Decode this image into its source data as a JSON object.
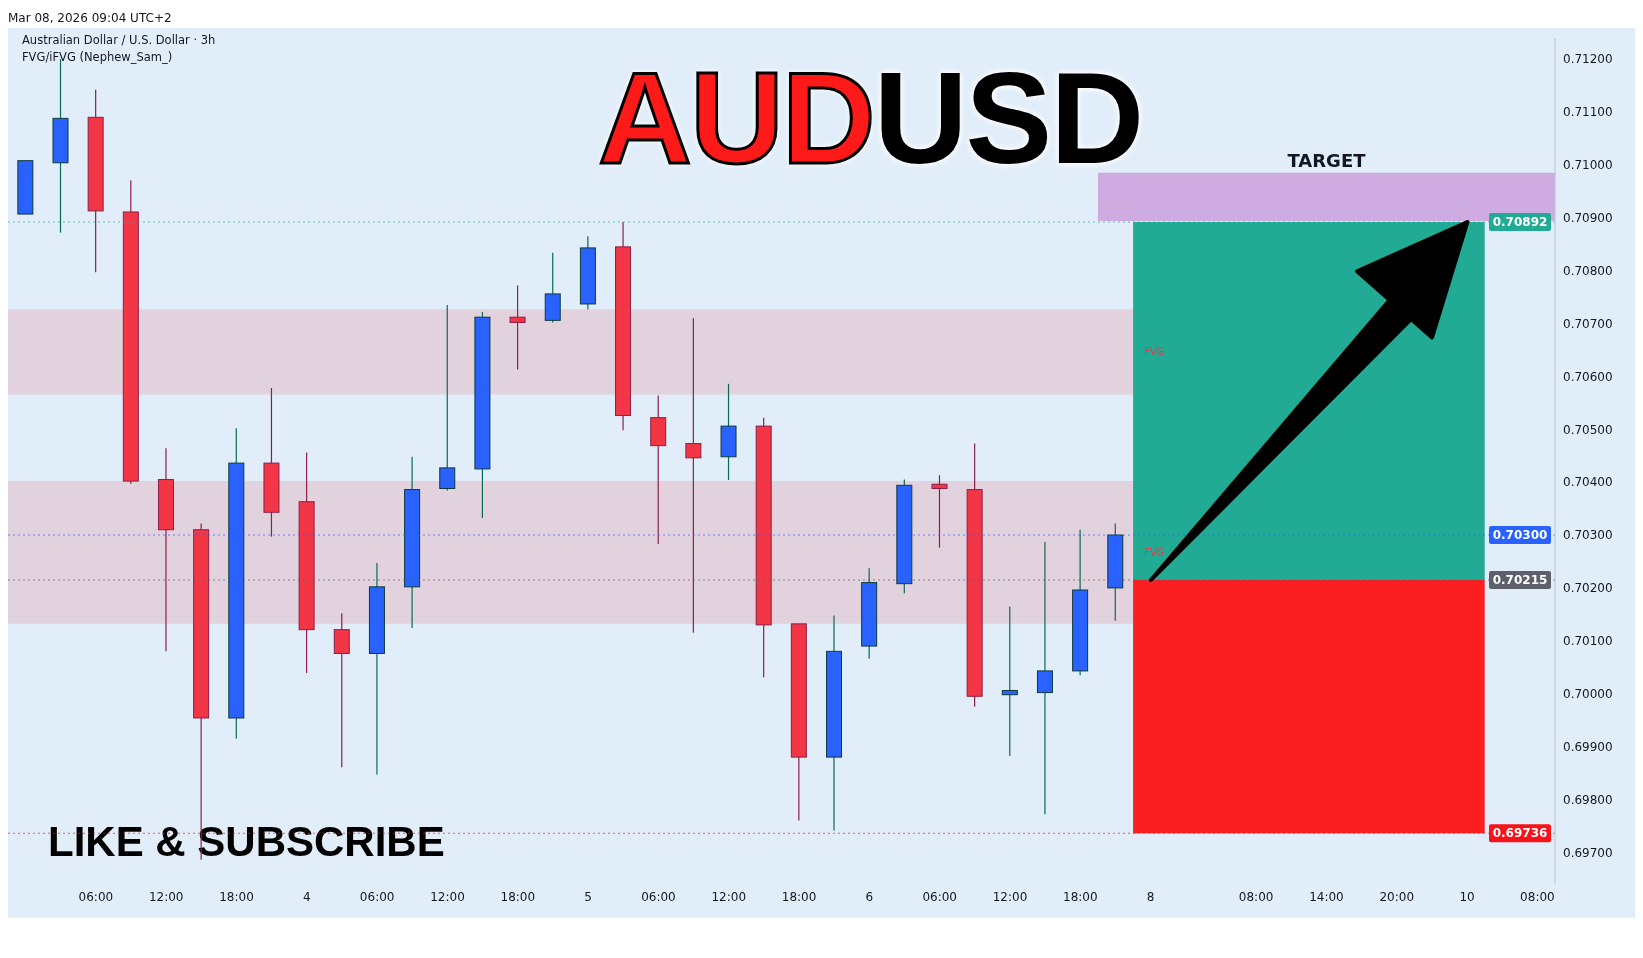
{
  "chart_data": {
    "type": "candlestick",
    "title": "AUDUSD",
    "subtitle": "Australian Dollar / U.S. Dollar · 3h",
    "annotations": [
      "Mar 08, 2026 09:04 UTC+2",
      "FVG/iFVG (Nephew_Sam_)",
      "LIKE & SUBSCRIBE"
    ],
    "categories": [
      null,
      null,
      "06:00",
      null,
      "12:00",
      null,
      "18:00",
      null,
      "4",
      null,
      "06:00",
      null,
      "12:00",
      null,
      "18:00",
      null,
      "5",
      null,
      "06:00",
      null,
      "12:00",
      null,
      "18:00",
      null,
      "6",
      null,
      "06:00",
      null,
      "12:00",
      null,
      "18:00",
      null,
      "8",
      null,
      null,
      "08:00",
      null,
      "14:00",
      null,
      "20:00",
      null,
      "10",
      null,
      "08:00"
    ],
    "ohlc": [
      [
        0.70907,
        0.71008,
        0.70907,
        0.71008
      ],
      [
        0.71004,
        0.712,
        0.70872,
        0.71088
      ],
      [
        0.7109,
        0.71142,
        0.70797,
        0.70913
      ],
      [
        0.70911,
        0.70971,
        0.70397,
        0.70402
      ],
      [
        0.70405,
        0.70464,
        0.7008,
        0.7031
      ],
      [
        0.7031,
        0.70322,
        0.69686,
        0.69954
      ],
      [
        0.69954,
        0.70502,
        0.69915,
        0.70436
      ],
      [
        0.70436,
        0.70578,
        0.70297,
        0.70343
      ],
      [
        0.70363,
        0.70456,
        0.70039,
        0.70121
      ],
      [
        0.70121,
        0.70152,
        0.69861,
        0.70076
      ],
      [
        0.70076,
        0.70247,
        0.69847,
        0.70202
      ],
      [
        0.70202,
        0.70448,
        0.70124,
        0.70386
      ],
      [
        0.70388,
        0.70735,
        0.70384,
        0.70427
      ],
      [
        0.70425,
        0.70722,
        0.70332,
        0.70712
      ],
      [
        0.70712,
        0.70772,
        0.70613,
        0.70702
      ],
      [
        0.70706,
        0.70834,
        0.70702,
        0.70756
      ],
      [
        0.70737,
        0.70865,
        0.70727,
        0.70843
      ],
      [
        0.70845,
        0.70892,
        0.70498,
        0.70526
      ],
      [
        0.70522,
        0.70564,
        0.70283,
        0.70469
      ],
      [
        0.70473,
        0.7071,
        0.70115,
        0.70446
      ],
      [
        0.70448,
        0.70586,
        0.70404,
        0.70506
      ],
      [
        0.70506,
        0.70522,
        0.70031,
        0.7013
      ],
      [
        0.70132,
        0.70132,
        0.6976,
        0.6988
      ],
      [
        0.6988,
        0.70148,
        0.69741,
        0.7008
      ],
      [
        0.7009,
        0.70237,
        0.70066,
        0.7021
      ],
      [
        0.70208,
        0.70405,
        0.7019,
        0.70394
      ],
      [
        0.70396,
        0.70413,
        0.70276,
        0.70388
      ],
      [
        0.70386,
        0.70473,
        0.69975,
        0.69995
      ],
      [
        0.69998,
        0.70165,
        0.69882,
        0.70006
      ],
      [
        0.70002,
        0.70287,
        0.69772,
        0.70043
      ],
      [
        0.70043,
        0.7031,
        0.70035,
        0.70196
      ],
      [
        0.702,
        0.70322,
        0.70138,
        0.703
      ],
      null,
      null,
      null,
      null,
      null,
      null,
      null,
      null,
      null,
      null,
      null,
      null
    ],
    "ylim": [
      0.6964,
      0.7124
    ],
    "yticks": [
      {
        "value": 0.697,
        "label": "0.69700"
      },
      {
        "value": 0.698,
        "label": "0.69800"
      },
      {
        "value": 0.699,
        "label": "0.69900"
      },
      {
        "value": 0.7,
        "label": "0.70000"
      },
      {
        "value": 0.701,
        "label": "0.70100"
      },
      {
        "value": 0.702,
        "label": "0.70200"
      },
      {
        "value": 0.703,
        "label": "0.70300"
      },
      {
        "value": 0.704,
        "label": "0.70400"
      },
      {
        "value": 0.705,
        "label": "0.70500"
      },
      {
        "value": 0.706,
        "label": "0.70600"
      },
      {
        "value": 0.707,
        "label": "0.70700"
      },
      {
        "value": 0.708,
        "label": "0.70800"
      },
      {
        "value": 0.709,
        "label": "0.70900"
      },
      {
        "value": 0.71,
        "label": "0.71000"
      },
      {
        "value": 0.711,
        "label": "0.71100"
      },
      {
        "value": 0.712,
        "label": "0.71200"
      }
    ],
    "bands": [
      {
        "axis": "y",
        "from": 0.70566,
        "to": 0.70727,
        "label": "FVG",
        "color": "#e2cdd9"
      },
      {
        "axis": "y",
        "from": 0.70132,
        "to": 0.70402,
        "label": "FVG",
        "color": "#e2cdd9"
      },
      {
        "axis": "y",
        "from": 0.70215,
        "to": 0.70892,
        "color": "#22ab94"
      },
      {
        "axis": "y",
        "from": 0.69736,
        "to": 0.70215,
        "color": "#fa1f20"
      },
      {
        "axis": "y",
        "from": 0.70894,
        "to": 0.70985,
        "label": "TARGET",
        "color": "#ceabe0"
      }
    ],
    "ref_lines": [
      {
        "axis": "y",
        "value": 0.70892,
        "label": "0.70892",
        "color": "#22ab94"
      },
      {
        "axis": "y",
        "value": 0.703,
        "label": "0.70300",
        "color": "#2962ff"
      },
      {
        "axis": "y",
        "value": 0.70215,
        "label": "0.70215",
        "color": "#5d606b"
      },
      {
        "axis": "y",
        "value": 0.69736,
        "label": "0.69736",
        "color": "#f7131a"
      }
    ]
  }
}
